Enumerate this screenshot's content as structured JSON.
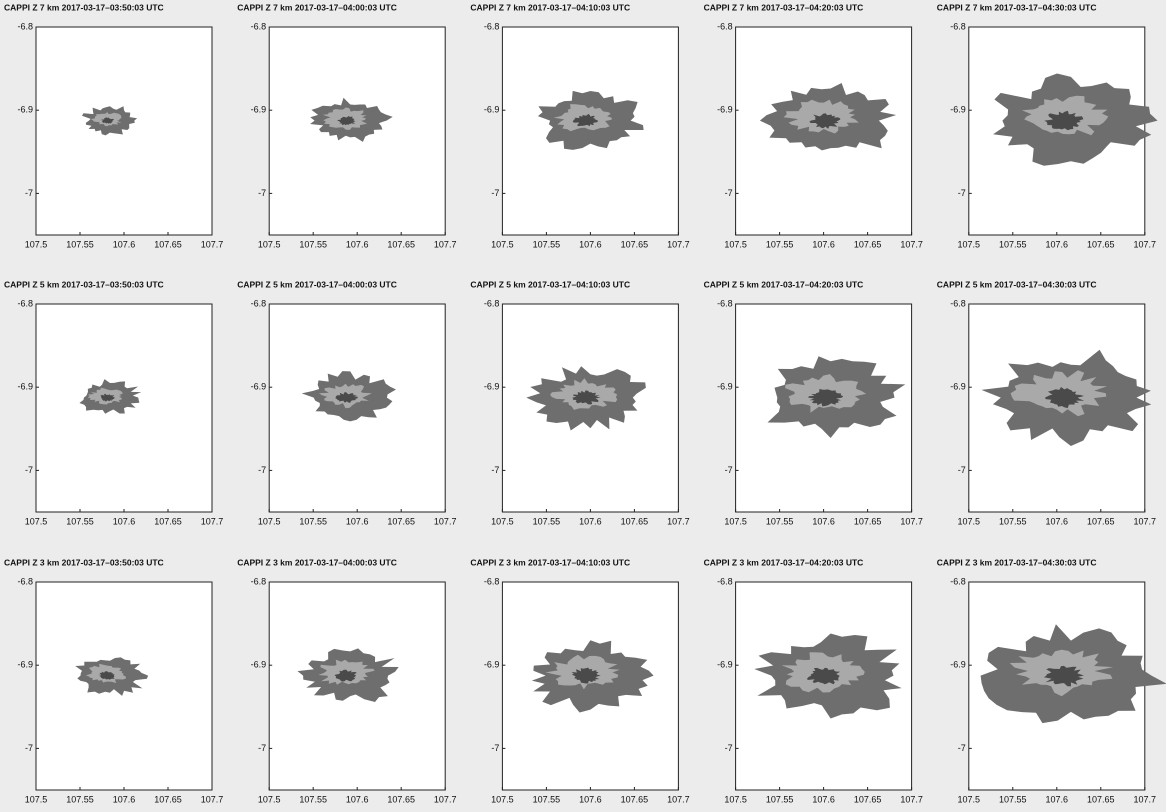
{
  "chart_data": [
    {
      "type": "image",
      "title": "CAPPI Z 7 km 2017-03-17–03:50:03 UTC",
      "xlim": [
        107.5,
        107.7
      ],
      "ylim": [
        -7.05,
        -6.8
      ],
      "xticks": [
        107.5,
        107.55,
        107.6,
        107.65,
        107.7
      ],
      "yticks": [
        -6.8,
        -6.9,
        -7
      ]
    },
    {
      "type": "image",
      "title": "CAPPI Z 7 km 2017-03-17–04:00:03 UTC",
      "xlim": [
        107.5,
        107.7
      ],
      "ylim": [
        -7.05,
        -6.8
      ],
      "xticks": [
        107.5,
        107.55,
        107.6,
        107.65,
        107.7
      ],
      "yticks": [
        -6.8,
        -6.9,
        -7
      ]
    },
    {
      "type": "image",
      "title": "CAPPI Z 7 km 2017-03-17–04:10:03 UTC",
      "xlim": [
        107.5,
        107.7
      ],
      "ylim": [
        -7.05,
        -6.8
      ],
      "xticks": [
        107.5,
        107.55,
        107.6,
        107.65,
        107.7
      ],
      "yticks": [
        -6.8,
        -6.9,
        -7
      ]
    },
    {
      "type": "image",
      "title": "CAPPI Z 7 km 2017-03-17–04:20:03 UTC",
      "xlim": [
        107.5,
        107.7
      ],
      "ylim": [
        -7.05,
        -6.8
      ],
      "xticks": [
        107.5,
        107.55,
        107.6,
        107.65,
        107.7
      ],
      "yticks": [
        -6.8,
        -6.9,
        -7
      ]
    },
    {
      "type": "image",
      "title": "CAPPI Z 7 km 2017-03-17–04:30:03 UTC",
      "xlim": [
        107.5,
        107.7
      ],
      "ylim": [
        -7.05,
        -6.8
      ],
      "xticks": [
        107.5,
        107.55,
        107.6,
        107.65,
        107.7
      ],
      "yticks": [
        -6.8,
        -6.9,
        -7
      ]
    },
    {
      "type": "image",
      "title": "CAPPI Z 5 km 2017-03-17–03:50:03 UTC",
      "xlim": [
        107.5,
        107.7
      ],
      "ylim": [
        -7.05,
        -6.8
      ],
      "xticks": [
        107.5,
        107.55,
        107.6,
        107.65,
        107.7
      ],
      "yticks": [
        -6.8,
        -6.9,
        -7
      ]
    },
    {
      "type": "image",
      "title": "CAPPI Z 5 km 2017-03-17–04:00:03 UTC",
      "xlim": [
        107.5,
        107.7
      ],
      "ylim": [
        -7.05,
        -6.8
      ],
      "xticks": [
        107.5,
        107.55,
        107.6,
        107.65,
        107.7
      ],
      "yticks": [
        -6.8,
        -6.9,
        -7
      ]
    },
    {
      "type": "image",
      "title": "CAPPI Z 5 km 2017-03-17–04:10:03 UTC",
      "xlim": [
        107.5,
        107.7
      ],
      "ylim": [
        -7.05,
        -6.8
      ],
      "xticks": [
        107.5,
        107.55,
        107.6,
        107.65,
        107.7
      ],
      "yticks": [
        -6.8,
        -6.9,
        -7
      ]
    },
    {
      "type": "image",
      "title": "CAPPI Z 5 km 2017-03-17–04:20:03 UTC",
      "xlim": [
        107.5,
        107.7
      ],
      "ylim": [
        -7.05,
        -6.8
      ],
      "xticks": [
        107.5,
        107.55,
        107.6,
        107.65,
        107.7
      ],
      "yticks": [
        -6.8,
        -6.9,
        -7
      ]
    },
    {
      "type": "image",
      "title": "CAPPI Z 5 km 2017-03-17–04:30:03 UTC",
      "xlim": [
        107.5,
        107.7
      ],
      "ylim": [
        -7.05,
        -6.8
      ],
      "xticks": [
        107.5,
        107.55,
        107.6,
        107.65,
        107.7
      ],
      "yticks": [
        -6.8,
        -6.9,
        -7
      ]
    },
    {
      "type": "image",
      "title": "CAPPI Z 3 km 2017-03-17–03:50:03 UTC",
      "xlim": [
        107.5,
        107.7
      ],
      "ylim": [
        -7.05,
        -6.8
      ],
      "xticks": [
        107.5,
        107.55,
        107.6,
        107.65,
        107.7
      ],
      "yticks": [
        -6.8,
        -6.9,
        -7
      ]
    },
    {
      "type": "image",
      "title": "CAPPI Z 3 km 2017-03-17–04:00:03 UTC",
      "xlim": [
        107.5,
        107.7
      ],
      "ylim": [
        -7.05,
        -6.8
      ],
      "xticks": [
        107.5,
        107.55,
        107.6,
        107.65,
        107.7
      ],
      "yticks": [
        -6.8,
        -6.9,
        -7
      ]
    },
    {
      "type": "image",
      "title": "CAPPI Z 3 km 2017-03-17–04:10:03 UTC",
      "xlim": [
        107.5,
        107.7
      ],
      "ylim": [
        -7.05,
        -6.8
      ],
      "xticks": [
        107.5,
        107.55,
        107.6,
        107.65,
        107.7
      ],
      "yticks": [
        -6.8,
        -6.9,
        -7
      ]
    },
    {
      "type": "image",
      "title": "CAPPI Z 3 km 2017-03-17–04:20:03 UTC",
      "xlim": [
        107.5,
        107.7
      ],
      "ylim": [
        -7.05,
        -6.8
      ],
      "xticks": [
        107.5,
        107.55,
        107.6,
        107.65,
        107.7
      ],
      "yticks": [
        -6.8,
        -6.9,
        -7
      ]
    },
    {
      "type": "image",
      "title": "CAPPI Z 3 km 2017-03-17–04:30:03 UTC",
      "xlim": [
        107.5,
        107.7
      ],
      "ylim": [
        -7.05,
        -6.8
      ],
      "xticks": [
        107.5,
        107.55,
        107.6,
        107.65,
        107.7
      ],
      "yticks": [
        -6.8,
        -6.9,
        -7
      ]
    }
  ]
}
